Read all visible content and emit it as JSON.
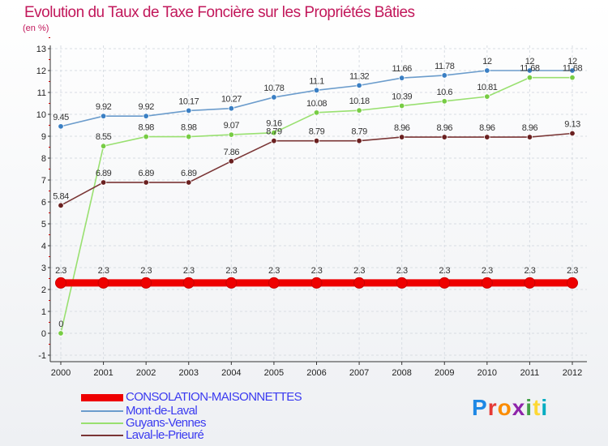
{
  "title": "Evolution du Taux de Taxe Foncière sur les Propriétés Bâties",
  "unit_label": "(en %)",
  "logo_text": "Proxiti",
  "logo_colors": [
    "#1e88e5",
    "#e53935",
    "#fb8c00",
    "#8e24aa",
    "#43a047",
    "#fdd835",
    "#00acc1"
  ],
  "chart_data": {
    "type": "line",
    "title": "Evolution du Taux de Taxe Foncière sur les Propriétés Bâties",
    "ylabel": "(en %)",
    "ylim": [
      -1,
      13
    ],
    "yticks": [
      "-1",
      "0",
      "1",
      "2",
      "3",
      "4",
      "5",
      "6",
      "7",
      "8",
      "9",
      "10",
      "11",
      "12",
      "13"
    ],
    "categories": [
      "2000",
      "2001",
      "2002",
      "2003",
      "2004",
      "2005",
      "2006",
      "2007",
      "2008",
      "2009",
      "2010",
      "2011",
      "2012"
    ],
    "series": [
      {
        "name": "CONSOLATION-MAISONNETTES",
        "color": "#ee0000",
        "values": [
          2.3,
          2.3,
          2.3,
          2.3,
          2.3,
          2.3,
          2.3,
          2.3,
          2.3,
          2.3,
          2.3,
          2.3,
          2.3
        ],
        "labels": [
          "2.3",
          "2.3",
          "2.3",
          "2.3",
          "2.3",
          "2.3",
          "2.3",
          "2.3",
          "2.3",
          "2.3",
          "2.3",
          "2.3",
          "2.3"
        ]
      },
      {
        "name": "Mont-de-Laval",
        "color": "#6b9ccc",
        "marker": "#3a7fc4",
        "values": [
          9.45,
          9.92,
          9.92,
          10.17,
          10.27,
          10.78,
          11.1,
          11.32,
          11.66,
          11.78,
          12,
          12,
          12
        ],
        "labels": [
          "9.45",
          "9.92",
          "9.92",
          "10.17",
          "10.27",
          "10.78",
          "11.1",
          "11.32",
          "11.66",
          "11.78",
          "12",
          "12",
          "12"
        ]
      },
      {
        "name": "Guyans-Vennes",
        "color": "#99e070",
        "marker": "#77cc44",
        "values": [
          0,
          8.55,
          8.98,
          8.98,
          9.07,
          9.16,
          10.08,
          10.18,
          10.39,
          10.6,
          10.81,
          11.68,
          11.68
        ],
        "labels": [
          "0",
          "8.55",
          "8.98",
          "8.98",
          "9.07",
          "9.16",
          "10.08",
          "10.18",
          "10.39",
          "10.6",
          "10.81",
          "11.68",
          "11.68"
        ]
      },
      {
        "name": "Laval-le-Prieuré",
        "color": "#7a3535",
        "marker": "#6a2020",
        "values": [
          5.84,
          6.89,
          6.89,
          6.89,
          7.86,
          8.79,
          8.79,
          8.79,
          8.96,
          8.96,
          8.96,
          8.96,
          9.13
        ],
        "labels": [
          "5.84",
          "6.89",
          "6.89",
          "6.89",
          "7.86",
          "8.79",
          "8.79",
          "8.79",
          "8.96",
          "8.96",
          "8.96",
          "8.96",
          "9.13"
        ]
      }
    ]
  }
}
